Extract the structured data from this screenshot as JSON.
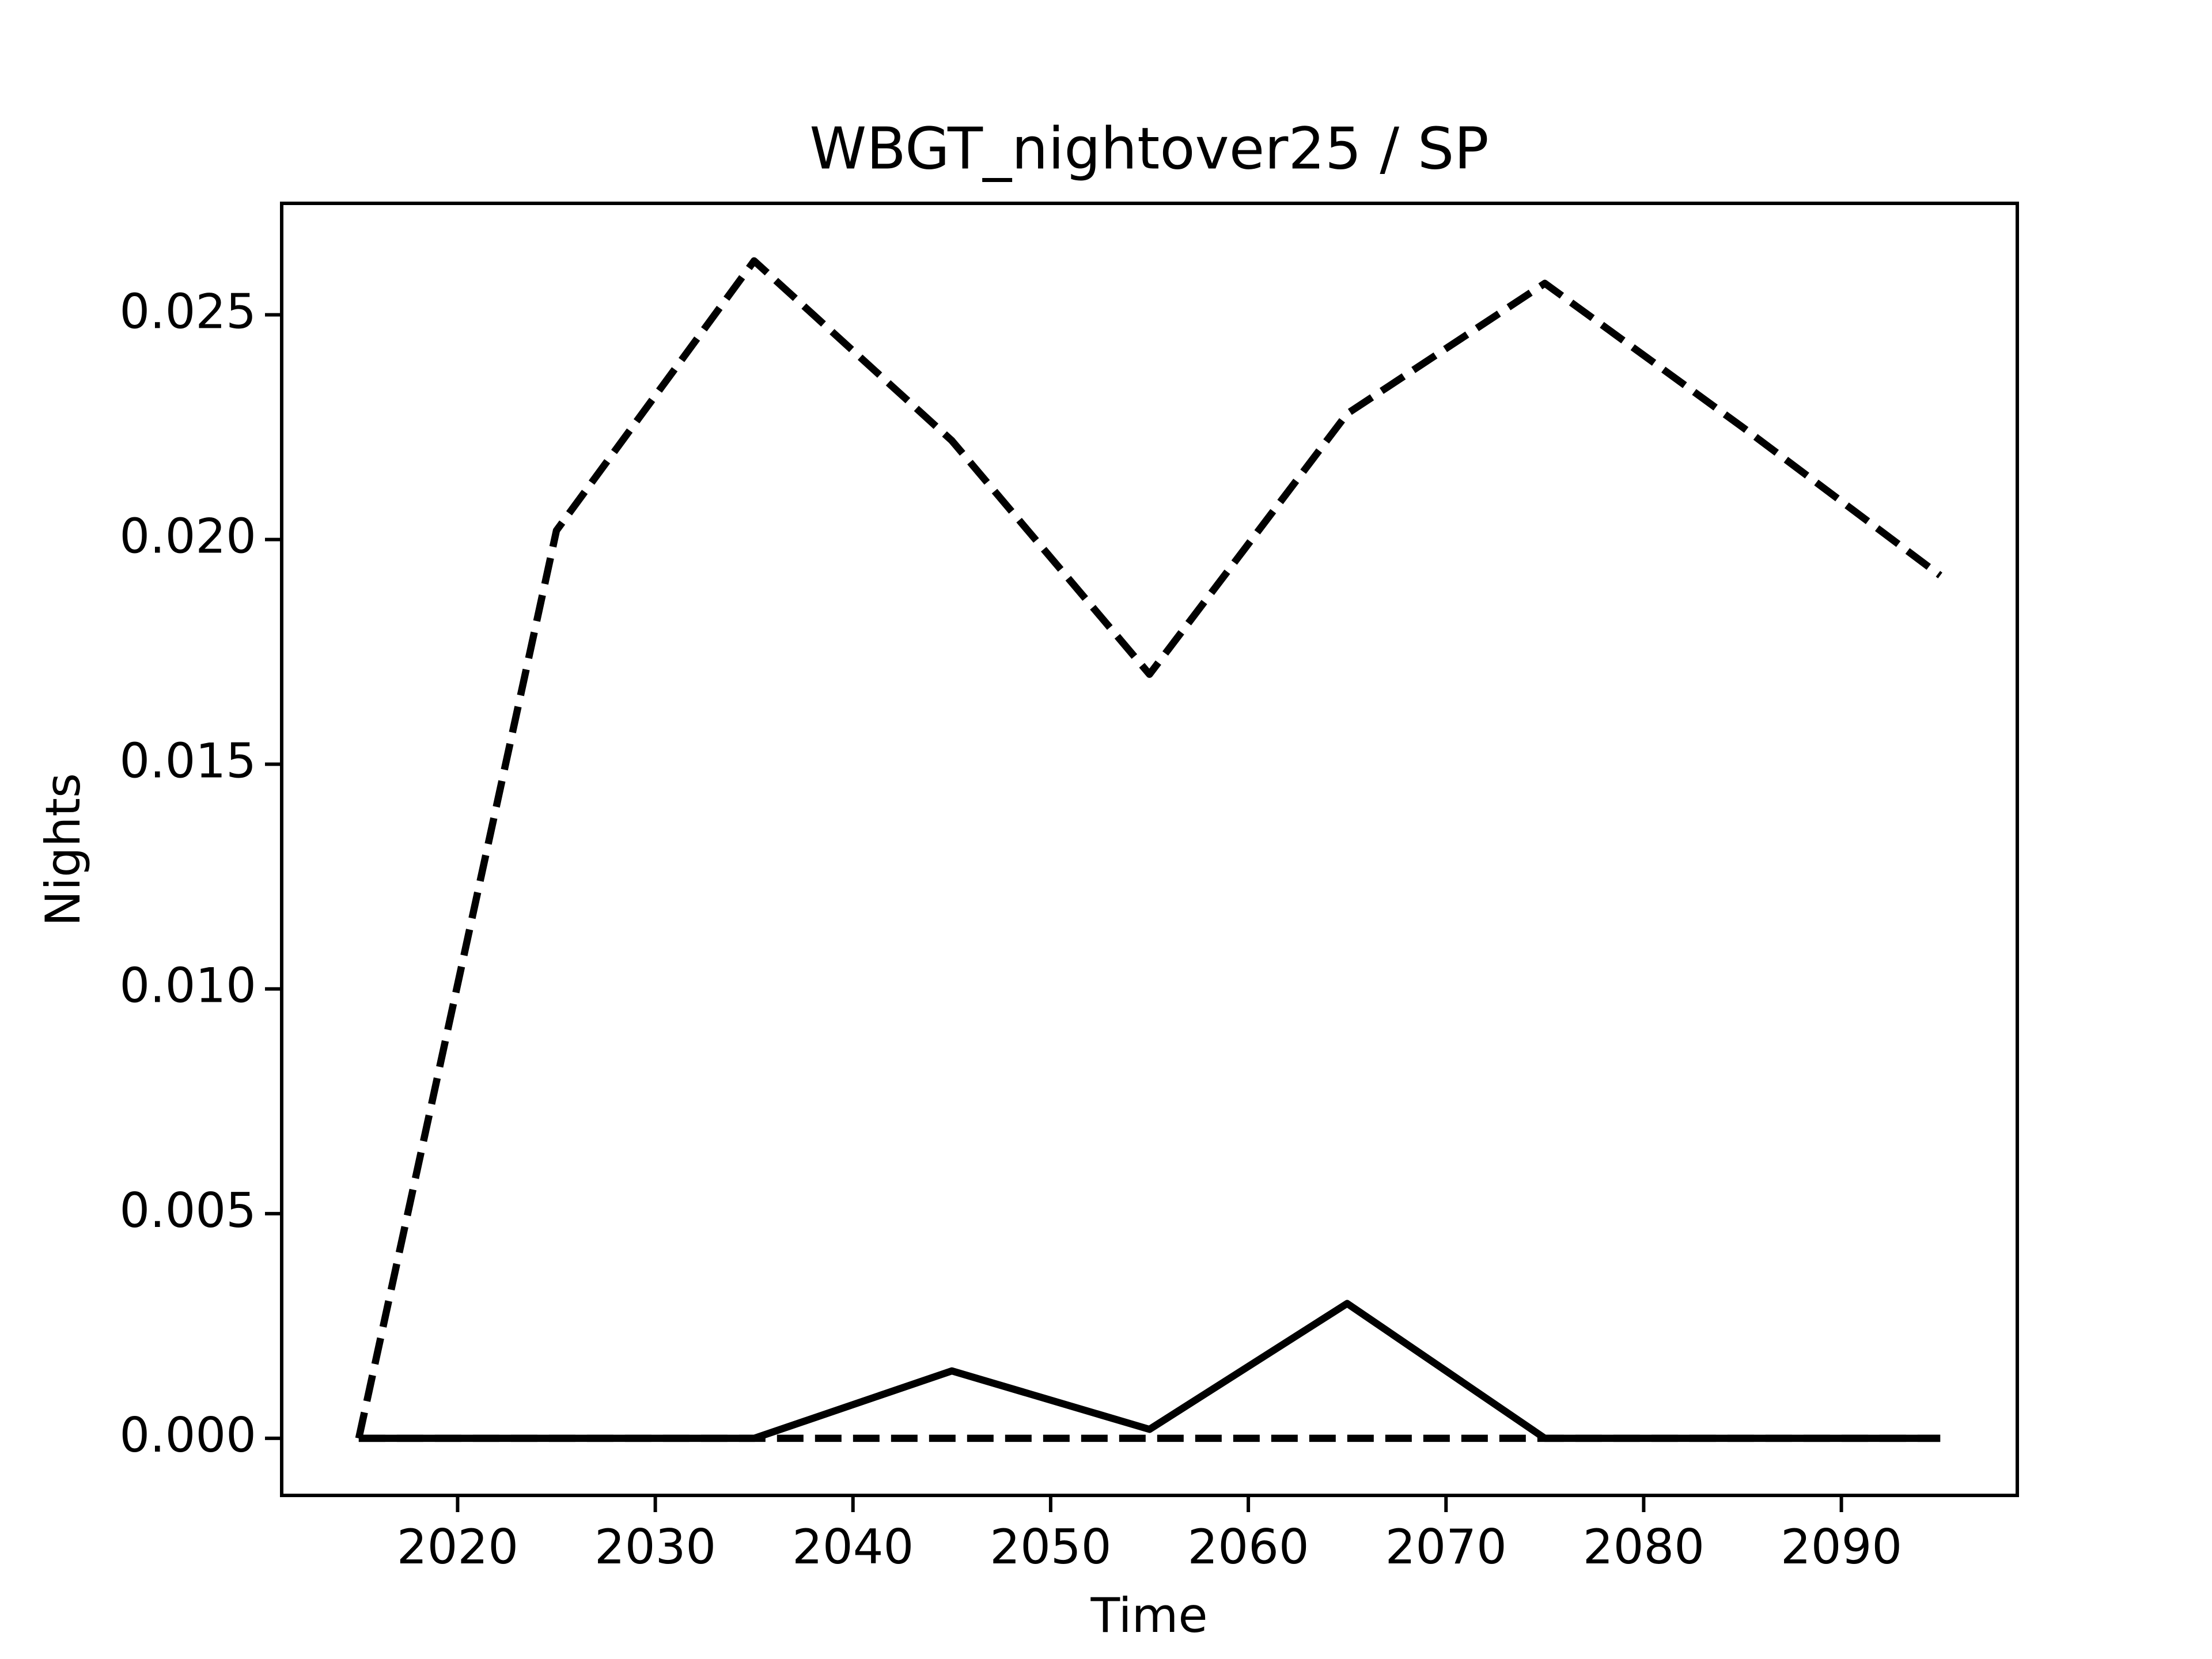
{
  "chart_data": {
    "type": "line",
    "title": "WBGT_nightover25 / SP",
    "x_label": "Time",
    "y_label": "Nights",
    "x": [
      2015,
      2025,
      2035,
      2045,
      2055,
      2065,
      2075,
      2085,
      2095
    ],
    "series": [
      {
        "color": "#000000",
        "linestyle": "dashed",
        "values": [
          0,
          0.0202,
          0.0262,
          0.0222,
          0.017,
          0.0228,
          0.0257,
          0.0225,
          0.0192
        ]
      },
      {
        "color": "#000000",
        "linestyle": "solid",
        "values": [
          0,
          0,
          0,
          0.0015,
          0.0002,
          0.003,
          0,
          0,
          0
        ]
      },
      {
        "color": "#000000",
        "linestyle": "dashed",
        "values": [
          0,
          0,
          0,
          0,
          0,
          0,
          0,
          0,
          0
        ]
      }
    ],
    "xlim": [
      2011.1,
      2098.9
    ],
    "ylim": [
      -0.00127,
      0.02748
    ],
    "xticks": [
      2020,
      2030,
      2040,
      2050,
      2060,
      2070,
      2080,
      2090
    ],
    "yticks": [
      {
        "value": 0,
        "label": "0.000"
      },
      0.005,
      {
        "value": 0.01,
        "label": "0.010"
      },
      0.015,
      {
        "value": 0.02,
        "label": "0.020"
      },
      0.025
    ],
    "grid": false
  }
}
